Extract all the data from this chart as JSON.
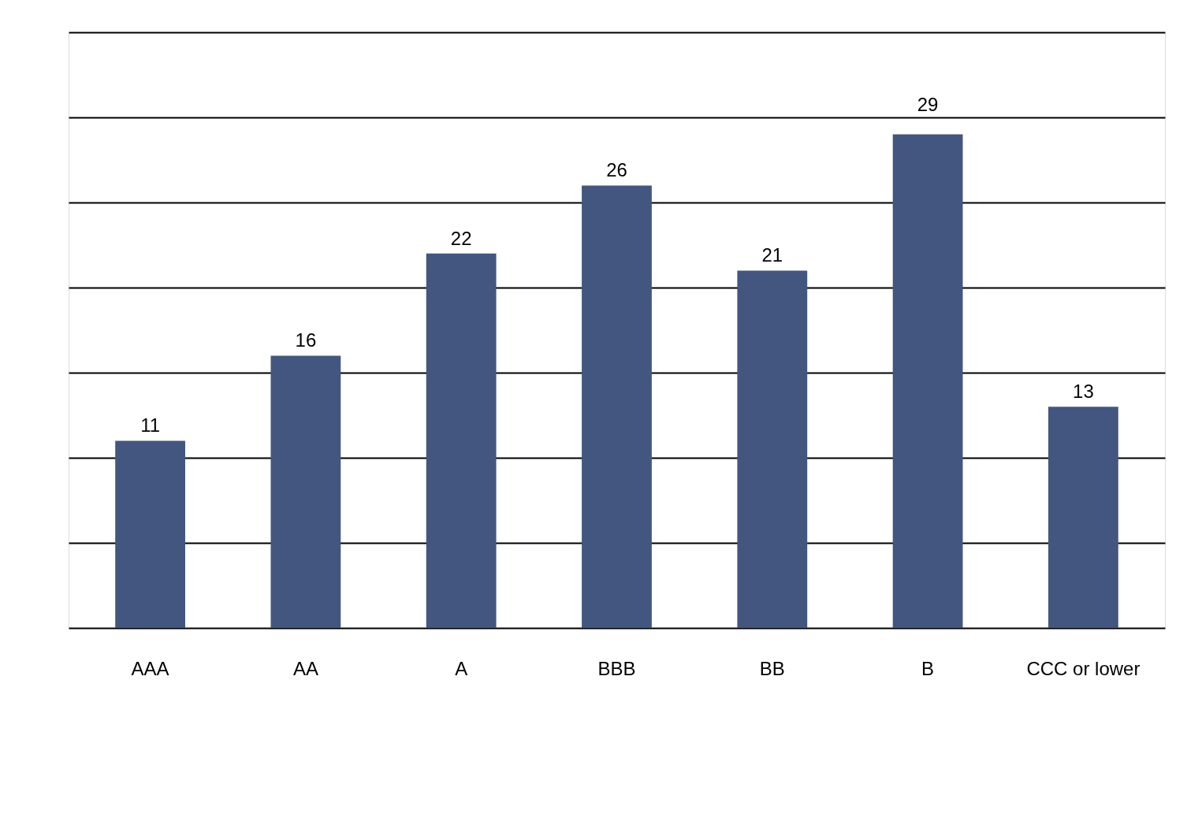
{
  "chart_data": {
    "type": "bar",
    "categories": [
      "AAA",
      "AA",
      "A",
      "BBB",
      "BB",
      "B",
      "CCC or lower"
    ],
    "values": [
      11,
      16,
      22,
      26,
      21,
      29,
      13
    ],
    "color": "#425680",
    "ylim": [
      0,
      35
    ],
    "yticks": [
      {
        "value": 0,
        "label": null
      },
      {
        "value": 5,
        "label": null
      },
      {
        "value": 10,
        "label": null
      },
      {
        "value": 15,
        "label": null
      },
      {
        "value": 20,
        "label": null
      },
      {
        "value": 25,
        "label": null
      },
      {
        "value": 30,
        "label": null
      },
      {
        "value": 35,
        "label": null
      }
    ],
    "tick_labels": "x",
    "grid": "y",
    "data_labels": true
  }
}
